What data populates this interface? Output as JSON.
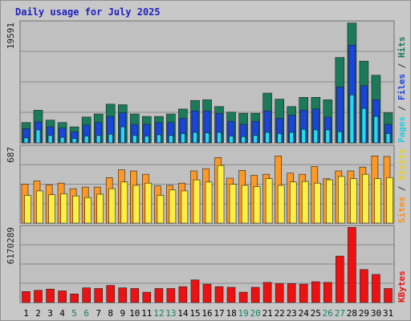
{
  "title": "Daily usage for July 2025",
  "colors": {
    "hits": "#1a7a5a",
    "files": "#1a44dd",
    "pages": "#22ddee",
    "visits": "#ffee44",
    "sites": "#ff9922",
    "kbytes": "#ee1111",
    "weekday_label": "#000000",
    "weekend_label": "#108060"
  },
  "chart_data": [
    {
      "type": "bar",
      "panel": "hits-files-pages",
      "ymax_label": "19591",
      "ylim": [
        0,
        19591
      ],
      "legend": [
        {
          "text": "Pages",
          "color": "#22ccdd"
        },
        {
          "text": " / ",
          "color": "#303030"
        },
        {
          "text": "Files",
          "color": "#1a44dd"
        },
        {
          "text": " / ",
          "color": "#303030"
        },
        {
          "text": "Hits",
          "color": "#1a7a5a"
        }
      ],
      "categories": [
        "1",
        "2",
        "3",
        "4",
        "5",
        "6",
        "7",
        "8",
        "9",
        "10",
        "11",
        "12",
        "13",
        "14",
        "15",
        "16",
        "17",
        "18",
        "19",
        "20",
        "21",
        "22",
        "23",
        "24",
        "25",
        "26",
        "27",
        "28",
        "29",
        "30",
        "31"
      ],
      "series": [
        {
          "name": "Hits",
          "values": [
            3300,
            5300,
            3700,
            3300,
            2600,
            4200,
            4700,
            6300,
            6200,
            4700,
            4300,
            4300,
            4700,
            5500,
            6900,
            7000,
            5900,
            5000,
            4800,
            4800,
            8100,
            7100,
            5900,
            7400,
            7400,
            7000,
            13900,
            19500,
            13300,
            11000,
            4900
          ]
        },
        {
          "name": "Files",
          "values": [
            2300,
            3400,
            2600,
            2400,
            1800,
            2900,
            3300,
            4300,
            4900,
            3000,
            3000,
            3300,
            3300,
            4000,
            5200,
            5200,
            4800,
            3500,
            3000,
            3500,
            5200,
            4000,
            4500,
            5300,
            5500,
            4200,
            9100,
            15900,
            9300,
            7000,
            3000
          ]
        },
        {
          "name": "Pages",
          "values": [
            800,
            2100,
            1200,
            900,
            700,
            1100,
            1200,
            1400,
            2600,
            1200,
            1100,
            1300,
            1200,
            1500,
            1700,
            1600,
            1700,
            1100,
            1000,
            1200,
            1700,
            1500,
            1700,
            2200,
            2100,
            2100,
            1800,
            7800,
            5600,
            4300,
            1500
          ]
        }
      ]
    },
    {
      "type": "bar",
      "panel": "visits-sites",
      "ymax_label": "687",
      "ylim": [
        0,
        687
      ],
      "legend": [
        {
          "text": "Sites",
          "color": "#ff8c1a"
        },
        {
          "text": " / ",
          "color": "#303030"
        },
        {
          "text": "Visits",
          "color": "#e8d020"
        }
      ],
      "categories": [
        "1",
        "2",
        "3",
        "4",
        "5",
        "6",
        "7",
        "8",
        "9",
        "10",
        "11",
        "12",
        "13",
        "14",
        "15",
        "16",
        "17",
        "18",
        "19",
        "20",
        "21",
        "22",
        "23",
        "24",
        "25",
        "26",
        "27",
        "28",
        "29",
        "30",
        "31"
      ],
      "series": [
        {
          "name": "Sites",
          "values": [
            350,
            380,
            345,
            360,
            310,
            325,
            325,
            410,
            480,
            470,
            440,
            335,
            340,
            360,
            470,
            490,
            590,
            405,
            475,
            430,
            440,
            605,
            450,
            440,
            510,
            400,
            470,
            470,
            505,
            605,
            600
          ]
        },
        {
          "name": "Visits",
          "values": [
            250,
            290,
            255,
            265,
            245,
            230,
            260,
            310,
            370,
            340,
            360,
            250,
            300,
            290,
            390,
            370,
            520,
            350,
            340,
            330,
            400,
            340,
            370,
            375,
            360,
            390,
            420,
            400,
            440,
            400,
            410
          ]
        }
      ]
    },
    {
      "type": "bar",
      "panel": "kbytes",
      "ymax_label": "6170289",
      "ylim": [
        0,
        6170289
      ],
      "legend": [
        {
          "text": "KBytes",
          "color": "#ee1111"
        }
      ],
      "categories": [
        "1",
        "2",
        "3",
        "4",
        "5",
        "6",
        "7",
        "8",
        "9",
        "10",
        "11",
        "12",
        "13",
        "14",
        "15",
        "16",
        "17",
        "18",
        "19",
        "20",
        "21",
        "22",
        "23",
        "24",
        "25",
        "26",
        "27",
        "28",
        "29",
        "30",
        "31"
      ],
      "series": [
        {
          "name": "KBytes",
          "values": [
            900000,
            1000000,
            1100000,
            950000,
            700000,
            1200000,
            1150000,
            1400000,
            1200000,
            1150000,
            850000,
            1150000,
            1150000,
            1300000,
            1850000,
            1500000,
            1300000,
            1250000,
            850000,
            1250000,
            1650000,
            1550000,
            1550000,
            1500000,
            1700000,
            1650000,
            3800000,
            6150000,
            2700000,
            2300000,
            1150000
          ]
        }
      ]
    }
  ],
  "x_labels": [
    {
      "text": "1",
      "weekend": false
    },
    {
      "text": "2",
      "weekend": false
    },
    {
      "text": "3",
      "weekend": false
    },
    {
      "text": "4",
      "weekend": false
    },
    {
      "text": "5",
      "weekend": true
    },
    {
      "text": "6",
      "weekend": true
    },
    {
      "text": "7",
      "weekend": false
    },
    {
      "text": "8",
      "weekend": false
    },
    {
      "text": "9",
      "weekend": false
    },
    {
      "text": "10",
      "weekend": false
    },
    {
      "text": "11",
      "weekend": false
    },
    {
      "text": "12",
      "weekend": true
    },
    {
      "text": "13",
      "weekend": true
    },
    {
      "text": "14",
      "weekend": false
    },
    {
      "text": "15",
      "weekend": false
    },
    {
      "text": "16",
      "weekend": false
    },
    {
      "text": "17",
      "weekend": false
    },
    {
      "text": "18",
      "weekend": false
    },
    {
      "text": "19",
      "weekend": true
    },
    {
      "text": "20",
      "weekend": true
    },
    {
      "text": "21",
      "weekend": false
    },
    {
      "text": "22",
      "weekend": false
    },
    {
      "text": "23",
      "weekend": false
    },
    {
      "text": "24",
      "weekend": false
    },
    {
      "text": "25",
      "weekend": false
    },
    {
      "text": "26",
      "weekend": true
    },
    {
      "text": "27",
      "weekend": true
    },
    {
      "text": "28",
      "weekend": false
    },
    {
      "text": "29",
      "weekend": false
    },
    {
      "text": "30",
      "weekend": false
    },
    {
      "text": "31",
      "weekend": false
    }
  ]
}
